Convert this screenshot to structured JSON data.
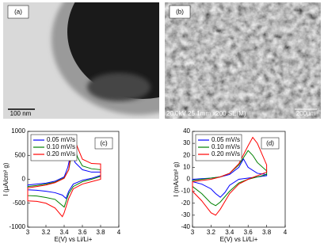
{
  "image_panels": [
    {
      "label": "(a)",
      "scale_bar": "100 nm"
    },
    {
      "label": "(b)",
      "info": "20.0kV 25.1mm x200 SE(M)",
      "scale_bar": "200µm"
    }
  ],
  "chart_data": [
    {
      "type": "line",
      "panel_label": "(c)",
      "xlabel": "E(V) vs Li/Li+",
      "ylabel": "I (µA/cm² g)",
      "xlim": [
        3,
        4
      ],
      "xticks": [
        3,
        3.2,
        3.4,
        3.6,
        3.8,
        4
      ],
      "ylim": [
        -1000,
        1000
      ],
      "yticks": [
        -1000,
        -500,
        0,
        500,
        1000
      ],
      "legend": "upper left",
      "series": [
        {
          "name": "0.05 mV/s",
          "color": "#0000ff",
          "x": [
            3.0,
            3.1,
            3.2,
            3.3,
            3.4,
            3.44,
            3.48,
            3.52,
            3.6,
            3.7,
            3.8,
            3.8,
            3.7,
            3.6,
            3.5,
            3.45,
            3.42,
            3.38,
            3.3,
            3.2,
            3.1,
            3.0,
            3.0
          ],
          "values": [
            -120,
            -100,
            -80,
            -40,
            50,
            250,
            600,
            350,
            200,
            150,
            150,
            80,
            20,
            -20,
            -100,
            -250,
            -400,
            -330,
            -280,
            -250,
            -230,
            -220,
            -120
          ]
        },
        {
          "name": "0.10 mV/s",
          "color": "#008000",
          "x": [
            3.0,
            3.1,
            3.2,
            3.3,
            3.4,
            3.45,
            3.5,
            3.55,
            3.6,
            3.7,
            3.8,
            3.8,
            3.7,
            3.6,
            3.5,
            3.45,
            3.4,
            3.35,
            3.3,
            3.2,
            3.1,
            3.0,
            3.0
          ],
          "values": [
            -150,
            -130,
            -100,
            -60,
            30,
            200,
            700,
            450,
            280,
            220,
            200,
            60,
            0,
            -50,
            -150,
            -300,
            -580,
            -500,
            -420,
            -380,
            -350,
            -340,
            -150
          ]
        },
        {
          "name": "0.20 mV/s",
          "color": "#ff0000",
          "x": [
            3.0,
            3.1,
            3.2,
            3.3,
            3.4,
            3.45,
            3.5,
            3.55,
            3.6,
            3.7,
            3.8,
            3.8,
            3.7,
            3.6,
            3.5,
            3.45,
            3.4,
            3.38,
            3.3,
            3.2,
            3.1,
            3.0,
            3.0
          ],
          "values": [
            -180,
            -150,
            -120,
            -70,
            20,
            200,
            900,
            650,
            420,
            330,
            320,
            0,
            -50,
            -100,
            -200,
            -400,
            -700,
            -780,
            -600,
            -500,
            -460,
            -450,
            -180
          ]
        }
      ]
    },
    {
      "type": "line",
      "panel_label": "(d)",
      "xlabel": "E(V) vs Li/Li+",
      "ylabel": "I (mA/cm² g)",
      "xlim": [
        3,
        4
      ],
      "xticks": [
        3,
        3.2,
        3.4,
        3.6,
        3.8,
        4
      ],
      "ylim": [
        -40,
        40
      ],
      "yticks": [
        -40,
        -30,
        -20,
        -10,
        0,
        10,
        20,
        30,
        40
      ],
      "legend": "upper left",
      "series": [
        {
          "name": "0.05 mV/s",
          "color": "#0000ff",
          "x": [
            3.0,
            3.1,
            3.2,
            3.3,
            3.4,
            3.5,
            3.55,
            3.6,
            3.7,
            3.8,
            3.8,
            3.7,
            3.6,
            3.5,
            3.4,
            3.35,
            3.3,
            3.25,
            3.2,
            3.1,
            3.0,
            3.0
          ],
          "values": [
            0,
            0.5,
            1,
            2,
            4,
            10,
            17,
            10,
            5,
            4,
            3,
            2,
            1,
            0,
            -5,
            -11,
            -15,
            -12,
            -8,
            -4,
            -2,
            0
          ]
        },
        {
          "name": "0.10 mV/s",
          "color": "#008000",
          "x": [
            3.0,
            3.1,
            3.2,
            3.3,
            3.4,
            3.5,
            3.6,
            3.65,
            3.7,
            3.8,
            3.8,
            3.7,
            3.6,
            3.5,
            3.4,
            3.3,
            3.25,
            3.2,
            3.1,
            3.0,
            3.0
          ],
          "values": [
            -1,
            0,
            1,
            2,
            5,
            12,
            24,
            20,
            14,
            7,
            4,
            2,
            0,
            -3,
            -10,
            -19,
            -22,
            -20,
            -12,
            -6,
            -1
          ]
        },
        {
          "name": "0.20 mV/s",
          "color": "#ff0000",
          "x": [
            3.0,
            3.1,
            3.2,
            3.3,
            3.4,
            3.5,
            3.6,
            3.65,
            3.7,
            3.8,
            3.8,
            3.7,
            3.6,
            3.5,
            3.4,
            3.3,
            3.25,
            3.2,
            3.1,
            3.0,
            3.0
          ],
          "values": [
            -2,
            -1,
            0,
            2,
            5,
            13,
            28,
            35,
            30,
            12,
            6,
            3,
            0,
            -4,
            -12,
            -25,
            -30,
            -28,
            -18,
            -10,
            -2
          ]
        }
      ]
    }
  ]
}
